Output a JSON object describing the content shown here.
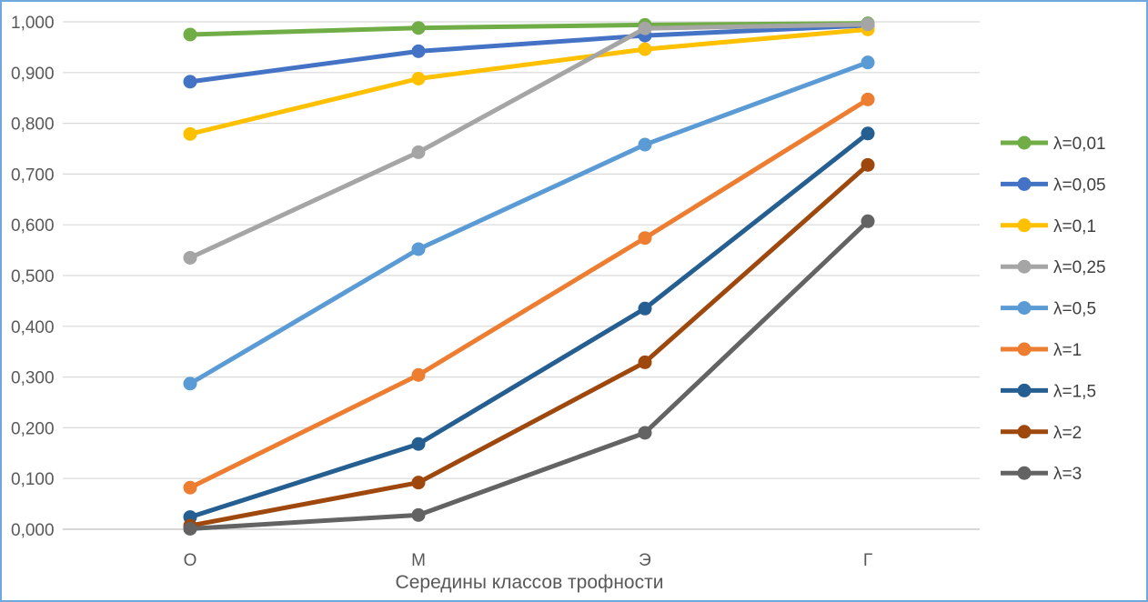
{
  "chart_data": {
    "type": "line",
    "title": "",
    "xlabel": "Середины классов трофности",
    "ylabel": "",
    "categories": [
      "О",
      "М",
      "Э",
      "Г"
    ],
    "ylim": [
      0,
      1
    ],
    "yticks": [
      "0,000",
      "0,100",
      "0,200",
      "0,300",
      "0,400",
      "0,500",
      "0,600",
      "0,700",
      "0,800",
      "0,900",
      "1,000"
    ],
    "grid": true,
    "legend_position": "right",
    "series": [
      {
        "name": "λ=0,01",
        "color": "#70ad47",
        "values": [
          0.975,
          0.988,
          0.994,
          0.997
        ]
      },
      {
        "name": "λ=0,05",
        "color": "#4472c4",
        "values": [
          0.882,
          0.942,
          0.973,
          0.993
        ]
      },
      {
        "name": "λ=0,1",
        "color": "#ffc000",
        "values": [
          0.779,
          0.888,
          0.946,
          0.985
        ]
      },
      {
        "name": "λ=0,25",
        "color": "#a5a5a5",
        "values": [
          0.535,
          0.743,
          0.987,
          0.995
        ]
      },
      {
        "name": "λ=0,5",
        "color": "#5b9bd5",
        "values": [
          0.287,
          0.552,
          0.758,
          0.92
        ]
      },
      {
        "name": "λ=1",
        "color": "#ed7d31",
        "values": [
          0.082,
          0.304,
          0.574,
          0.847
        ]
      },
      {
        "name": "λ=1,5",
        "color": "#255e91",
        "values": [
          0.024,
          0.168,
          0.435,
          0.78
        ]
      },
      {
        "name": "λ=2",
        "color": "#9e480e",
        "values": [
          0.007,
          0.092,
          0.329,
          0.718
        ]
      },
      {
        "name": "λ=3",
        "color": "#636363",
        "values": [
          0.001,
          0.028,
          0.19,
          0.607
        ]
      }
    ]
  }
}
